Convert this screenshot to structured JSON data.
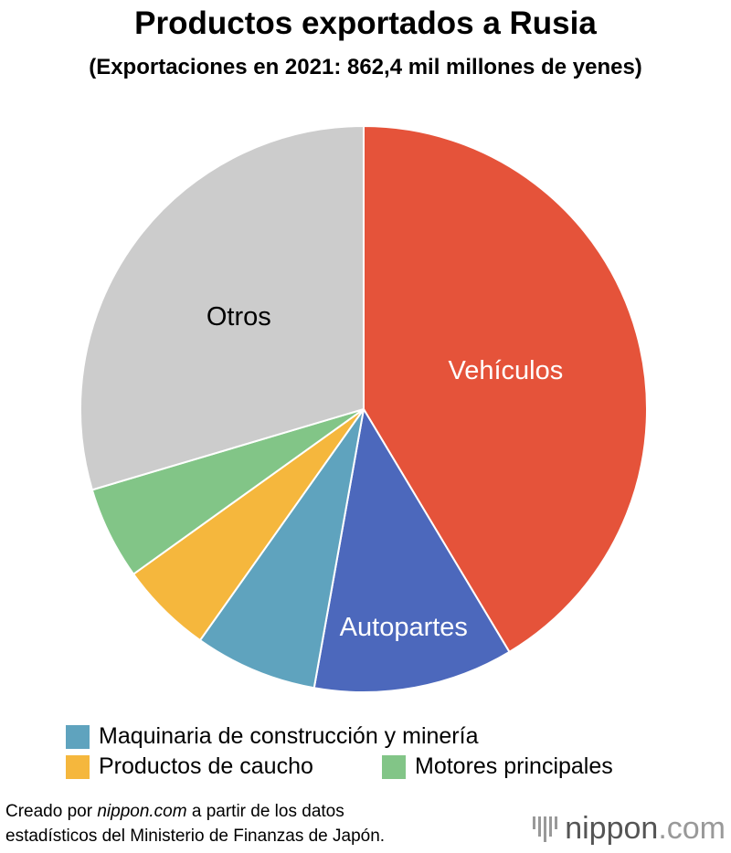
{
  "chart_data": {
    "type": "pie",
    "title": "Productos exportados a Rusia",
    "subtitle": "(Exportaciones en 2021: 862,4 mil millones de yenes)",
    "unit": "percent (estimated)",
    "slices": [
      {
        "name": "Vehículos",
        "value": 41.4,
        "color": "#E5533A",
        "label": "Vehículos",
        "label_color": "#ffffff"
      },
      {
        "name": "Autopartes",
        "value": 11.4,
        "color": "#4C68BC",
        "label": "Autopartes",
        "label_color": "#ffffff"
      },
      {
        "name": "Maquinaria de construcción y minería",
        "value": 7.0,
        "color": "#5FA3BE"
      },
      {
        "name": "Productos de caucho",
        "value": 5.3,
        "color": "#F5B73D"
      },
      {
        "name": "Motores principales",
        "value": 5.3,
        "color": "#82C587"
      },
      {
        "name": "Otros",
        "value": 29.6,
        "color": "#CCCCCC",
        "label": "Otros",
        "label_color": "#000000"
      }
    ],
    "legend": [
      "Maquinaria de construcción y minería",
      "Productos de caucho",
      "Motores principales"
    ],
    "legend_placement": "bottom"
  },
  "source": {
    "prefix": "Creado por ",
    "site": "nippon.com",
    "suffix": " a partir de los datos",
    "line2": "estadísticos del Ministerio de Finanzas de Japón."
  },
  "logo": {
    "text": "nippon",
    "suffix": ".com"
  }
}
